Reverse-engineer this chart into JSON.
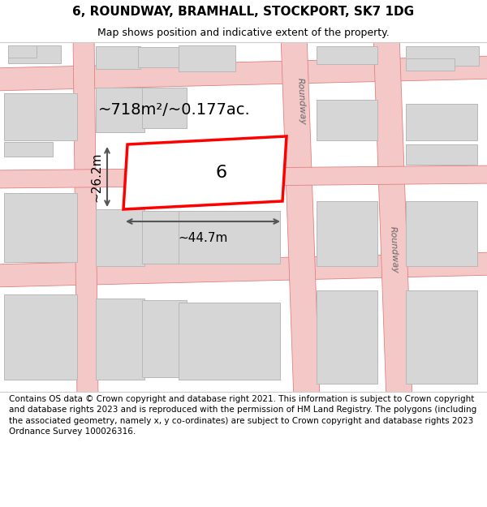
{
  "title": "6, ROUNDWAY, BRAMHALL, STOCKPORT, SK7 1DG",
  "subtitle": "Map shows position and indicative extent of the property.",
  "footer": "Contains OS data © Crown copyright and database right 2021. This information is subject to Crown copyright and database rights 2023 and is reproduced with the permission of HM Land Registry. The polygons (including the associated geometry, namely x, y co-ordinates) are subject to Crown copyright and database rights 2023 Ordnance Survey 100026316.",
  "road_color": "#f5c8c8",
  "road_edge_color": "#e08080",
  "building_fill": "#d6d6d6",
  "building_edge": "#b8b8b8",
  "map_bg": "#f8f6f6",
  "property_fill": "#ffffff",
  "property_edge": "#ff0000",
  "property_edge_width": 2.5,
  "area_text": "~718m²/~0.177ac.",
  "width_text": "~44.7m",
  "height_text": "~26.2m",
  "property_number": "6",
  "road_label": "Roundway",
  "dim_color": "#555555",
  "title_fontsize": 11,
  "subtitle_fontsize": 9,
  "footer_fontsize": 7.5,
  "area_fontsize": 14,
  "dim_fontsize": 11,
  "prop_num_fontsize": 16,
  "road_label_fontsize": 8
}
